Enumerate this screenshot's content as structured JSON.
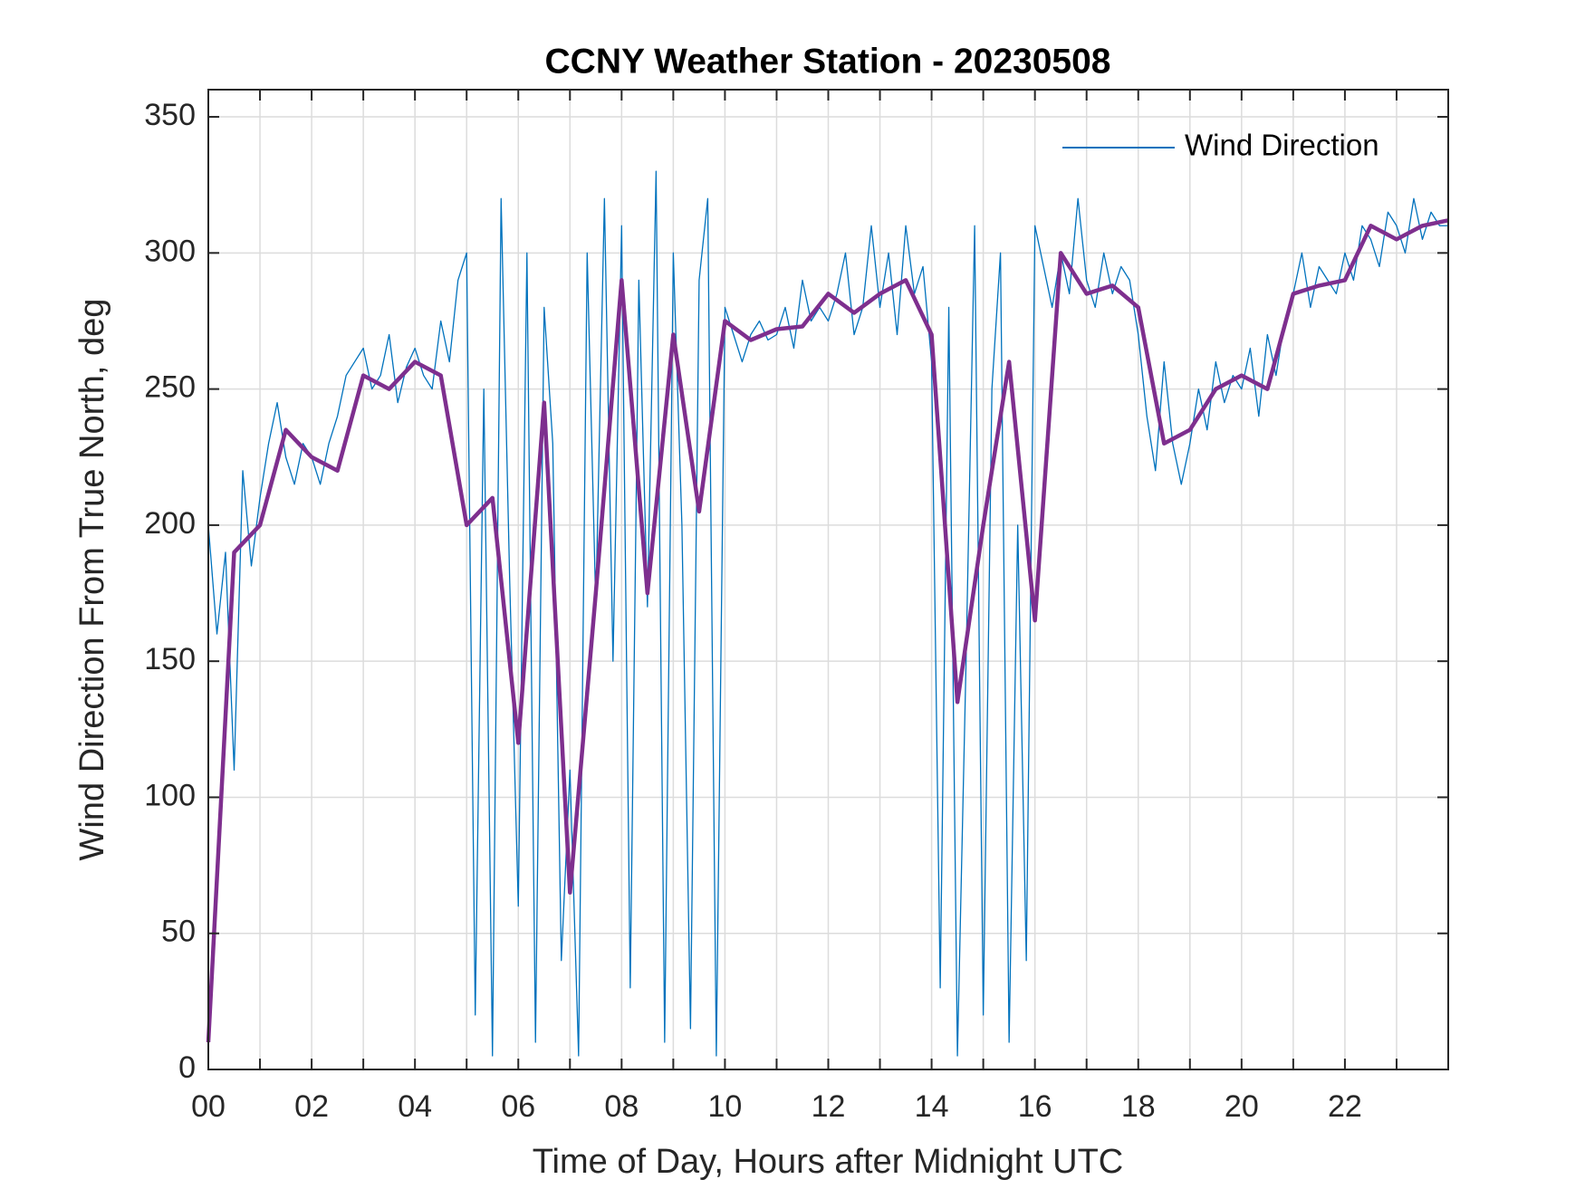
{
  "chart_data": {
    "type": "line",
    "title": "CCNY Weather Station - 20230508",
    "xlabel": "Time of Day, Hours after Midnight UTC",
    "ylabel": "Wind Direction From True North, deg",
    "xlim": [
      0,
      24
    ],
    "ylim": [
      0,
      360
    ],
    "xticks": [
      {
        "value": 0,
        "label": "00"
      },
      {
        "value": 2,
        "label": "02"
      },
      {
        "value": 4,
        "label": "04"
      },
      {
        "value": 6,
        "label": "06"
      },
      {
        "value": 8,
        "label": "08"
      },
      {
        "value": 10,
        "label": "10"
      },
      {
        "value": 12,
        "label": "12"
      },
      {
        "value": 14,
        "label": "14"
      },
      {
        "value": 16,
        "label": "16"
      },
      {
        "value": 18,
        "label": "18"
      },
      {
        "value": 20,
        "label": "20"
      },
      {
        "value": 22,
        "label": "22"
      }
    ],
    "xminorticks": [
      1,
      3,
      5,
      7,
      9,
      11,
      13,
      15,
      17,
      19,
      21,
      23
    ],
    "yticks": [
      0,
      50,
      100,
      150,
      200,
      250,
      300,
      350
    ],
    "grid": true,
    "legend": "northeast",
    "series": [
      {
        "name": "Wind Direction",
        "color": "#0072bd",
        "x": [
          0,
          0.167,
          0.333,
          0.5,
          0.667,
          0.833,
          1,
          1.167,
          1.333,
          1.5,
          1.667,
          1.833,
          2,
          2.167,
          2.333,
          2.5,
          2.667,
          2.833,
          3,
          3.167,
          3.333,
          3.5,
          3.667,
          3.833,
          4,
          4.167,
          4.333,
          4.5,
          4.667,
          4.833,
          5,
          5.167,
          5.333,
          5.5,
          5.667,
          5.833,
          6,
          6.167,
          6.333,
          6.5,
          6.667,
          6.833,
          7,
          7.167,
          7.333,
          7.5,
          7.667,
          7.833,
          8,
          8.167,
          8.333,
          8.5,
          8.667,
          8.833,
          9,
          9.167,
          9.333,
          9.5,
          9.667,
          9.833,
          10,
          10.167,
          10.333,
          10.5,
          10.667,
          10.833,
          11,
          11.167,
          11.333,
          11.5,
          11.667,
          11.833,
          12,
          12.167,
          12.333,
          12.5,
          12.667,
          12.833,
          13,
          13.167,
          13.333,
          13.5,
          13.667,
          13.833,
          14,
          14.167,
          14.333,
          14.5,
          14.667,
          14.833,
          15,
          15.167,
          15.333,
          15.5,
          15.667,
          15.833,
          16,
          16.167,
          16.333,
          16.5,
          16.667,
          16.833,
          17,
          17.167,
          17.333,
          17.5,
          17.667,
          17.833,
          18,
          18.167,
          18.333,
          18.5,
          18.667,
          18.833,
          19,
          19.167,
          19.333,
          19.5,
          19.667,
          19.833,
          20,
          20.167,
          20.333,
          20.5,
          20.667,
          20.833,
          21,
          21.167,
          21.333,
          21.5,
          21.667,
          21.833,
          22,
          22.167,
          22.333,
          22.5,
          22.667,
          22.833,
          23,
          23.167,
          23.333,
          23.5,
          23.667,
          23.833,
          24
        ],
        "values": [
          200,
          160,
          190,
          110,
          220,
          185,
          210,
          230,
          245,
          225,
          215,
          230,
          225,
          215,
          230,
          240,
          255,
          260,
          265,
          250,
          255,
          270,
          245,
          258,
          265,
          255,
          250,
          275,
          260,
          290,
          300,
          20,
          250,
          5,
          320,
          180,
          60,
          300,
          10,
          280,
          230,
          40,
          110,
          5,
          300,
          170,
          320,
          150,
          310,
          30,
          290,
          170,
          330,
          10,
          300,
          200,
          15,
          290,
          320,
          5,
          280,
          270,
          260,
          270,
          275,
          268,
          270,
          280,
          265,
          290,
          275,
          280,
          275,
          285,
          300,
          270,
          280,
          310,
          280,
          300,
          270,
          310,
          285,
          295,
          260,
          30,
          280,
          5,
          150,
          310,
          20,
          250,
          300,
          10,
          200,
          40,
          310,
          295,
          280,
          300,
          285,
          320,
          290,
          280,
          300,
          285,
          295,
          290,
          270,
          240,
          220,
          260,
          230,
          215,
          230,
          250,
          235,
          260,
          245,
          255,
          250,
          265,
          240,
          270,
          255,
          275,
          285,
          300,
          280,
          295,
          290,
          285,
          300,
          290,
          310,
          305,
          295,
          315,
          310,
          300,
          320,
          305,
          315,
          310,
          310
        ]
      },
      {
        "color": "#7e2f8e",
        "x": [
          0,
          0.5,
          1,
          1.5,
          2,
          2.5,
          3,
          3.5,
          4,
          4.5,
          5,
          5.5,
          6,
          6.5,
          7,
          7.5,
          8,
          8.5,
          9,
          9.5,
          10,
          10.5,
          11,
          11.5,
          12,
          12.5,
          13,
          13.5,
          14,
          14.5,
          15,
          15.5,
          16,
          16.5,
          17,
          17.5,
          18,
          18.5,
          19,
          19.5,
          20,
          20.5,
          21,
          21.5,
          22,
          22.5,
          23,
          23.5,
          24
        ],
        "values": [
          10,
          190,
          200,
          235,
          225,
          220,
          255,
          250,
          260,
          255,
          200,
          210,
          120,
          245,
          65,
          175,
          290,
          175,
          270,
          205,
          275,
          268,
          272,
          273,
          285,
          278,
          285,
          290,
          270,
          135,
          200,
          260,
          165,
          300,
          285,
          288,
          280,
          230,
          235,
          250,
          255,
          250,
          285,
          288,
          290,
          310,
          305,
          310,
          312
        ]
      }
    ]
  }
}
